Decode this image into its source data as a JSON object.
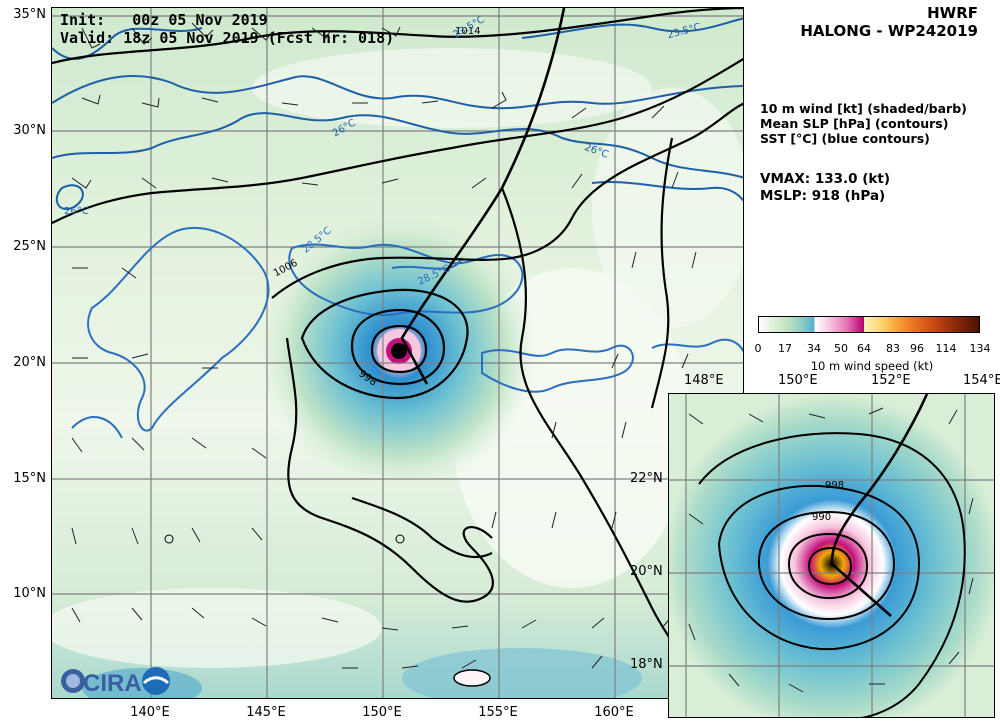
{
  "header": {
    "init_label": "Init:",
    "init_value": "00z 05 Nov 2019",
    "valid_label": "Valid:",
    "valid_value": "18z 05 Nov 2019 (Fcst hr: 018)",
    "model": "HWRF",
    "storm": "HALONG - WP242019"
  },
  "legend": {
    "line1": "10 m wind [kt] (shaded/barb)",
    "line2": "Mean SLP [hPa] (contours)",
    "line3": "SST [°C] (blue contours)"
  },
  "stats": {
    "vmax": "VMAX: 133.0 (kt)",
    "mslp": "MSLP:  918 (hPa)"
  },
  "colorbar": {
    "ticks": [
      "0",
      "17",
      "34",
      "50",
      "64",
      "83",
      "96",
      "114",
      "134"
    ],
    "title": "10 m wind speed (kt)",
    "colors": [
      "#ffffff",
      "#8fd0c3",
      "#55b0d2",
      "#e773b6",
      "#b8006f",
      "#fdd36d",
      "#e8701f",
      "#8f2a07",
      "#4a1300"
    ]
  },
  "main_map": {
    "lat_labels": [
      "35°N",
      "30°N",
      "25°N",
      "20°N",
      "15°N",
      "10°N"
    ],
    "lon_labels": [
      "140°E",
      "145°E",
      "150°E",
      "155°E",
      "160°E"
    ],
    "contour_labels": {
      "slp_1014": "1014",
      "slp_1006": "1006",
      "slp_998": "998",
      "sst_235a": "23.5°C",
      "sst_235b": "23.5°C",
      "sst_26a": "26°C",
      "sst_26b": "26°C",
      "sst_26c": "26°C",
      "sst_285a": "28.5°C",
      "sst_285b": "28.5°C"
    }
  },
  "inset_map": {
    "lon_labels": [
      "148°E",
      "150°E",
      "152°E",
      "154°E"
    ],
    "lat_labels": [
      "22°N",
      "20°N",
      "18°N"
    ],
    "contour_label": "998",
    "contour_label_inner": "990"
  },
  "logo": {
    "text": "CIRA",
    "icon": "cira-logo-icon"
  }
}
